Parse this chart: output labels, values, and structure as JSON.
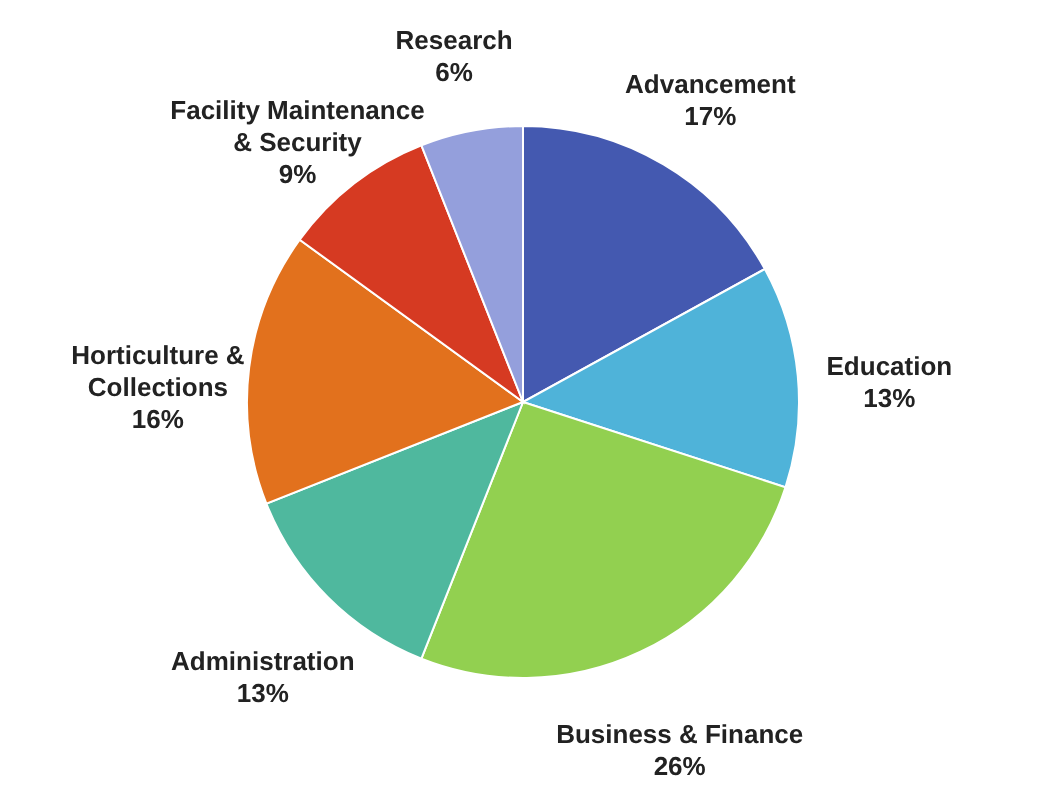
{
  "chart_data": {
    "type": "pie",
    "categories": [
      "Advancement",
      "Education",
      "Business & Finance",
      "Administration",
      "Horticulture & Collections",
      "Facility Maintenance & Security",
      "Research"
    ],
    "values": [
      17,
      13,
      26,
      13,
      16,
      9,
      6
    ],
    "value_labels": [
      "17%",
      "13%",
      "26%",
      "13%",
      "16%",
      "9%",
      "6%"
    ],
    "colors": [
      "#4459b0",
      "#4fb3d9",
      "#92d050",
      "#4fb89e",
      "#e2711d",
      "#d63a22",
      "#949fdc"
    ]
  }
}
